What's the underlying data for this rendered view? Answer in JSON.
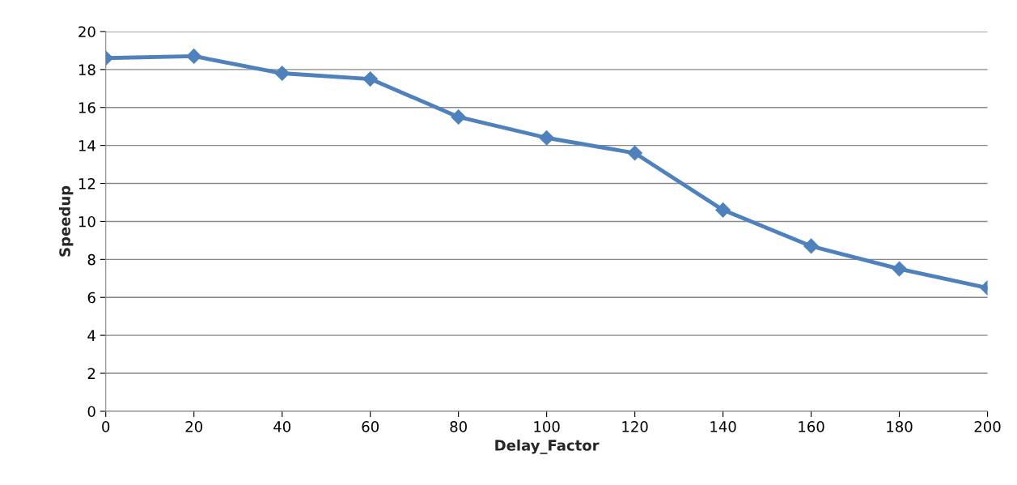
{
  "chart_data": {
    "type": "line",
    "xlabel": "Delay_Factor",
    "ylabel": "Speedup",
    "x": [
      0,
      20,
      40,
      60,
      80,
      100,
      120,
      140,
      160,
      180,
      200
    ],
    "series": [
      {
        "color": "#4f81bd",
        "values": [
          18.6,
          18.7,
          17.8,
          17.5,
          15.5,
          14.4,
          13.6,
          10.6,
          8.7,
          7.5,
          6.5
        ]
      }
    ],
    "xlim": [
      0,
      200
    ],
    "xticks": [
      0,
      20,
      40,
      60,
      80,
      100,
      120,
      140,
      160,
      180,
      200
    ],
    "ylim": [
      0,
      20
    ],
    "yticks": [
      0,
      2,
      4,
      6,
      8,
      10,
      12,
      14,
      16,
      18,
      20
    ],
    "grid": "y",
    "marker": "diamond",
    "line_style": "solid",
    "legend": false
  }
}
